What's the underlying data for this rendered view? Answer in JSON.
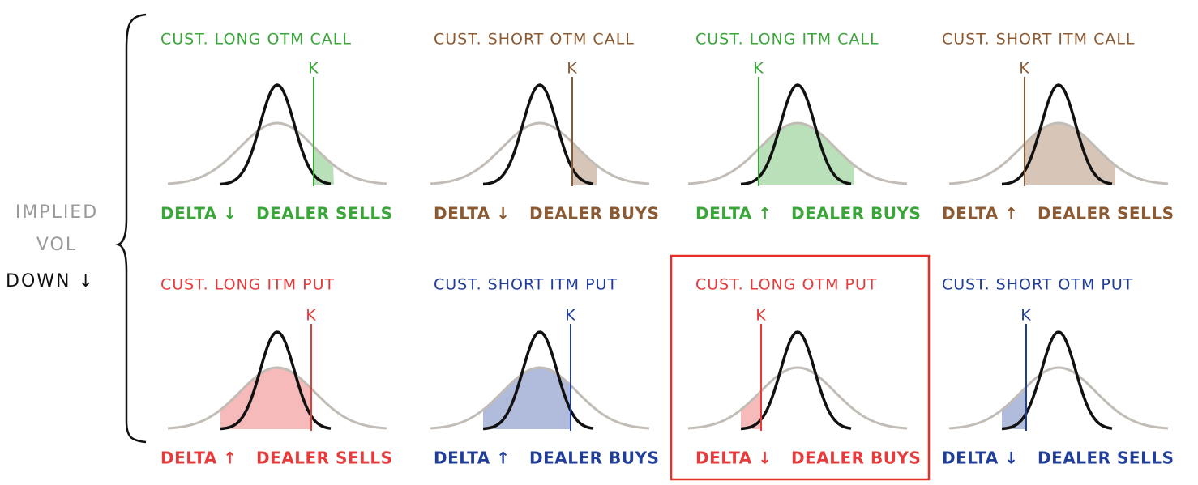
{
  "side_label": {
    "line1": "IMPLIED",
    "line2": "VOL",
    "line3": "DOWN ↓"
  },
  "panels": [
    {
      "title": "CUST. LONG OTM CALL",
      "strike": "K",
      "delta": "DELTA ↓",
      "dealer": "DEALER SELLS",
      "color": "#3aa63a"
    },
    {
      "title": "CUST. SHORT OTM CALL",
      "strike": "K",
      "delta": "DELTA ↓",
      "dealer": "DEALER BUYS",
      "color": "#8b5a33"
    },
    {
      "title": "CUST. LONG ITM CALL",
      "strike": "K",
      "delta": "DELTA ↑",
      "dealer": "DEALER BUYS",
      "color": "#3aa63a"
    },
    {
      "title": "CUST. SHORT ITM CALL",
      "strike": "K",
      "delta": "DELTA ↑",
      "dealer": "DEALER SELLS",
      "color": "#8b5a33"
    },
    {
      "title": "CUST. LONG ITM PUT",
      "strike": "K",
      "delta": "DELTA ↑",
      "dealer": "DEALER SELLS",
      "color": "#e83a3a"
    },
    {
      "title": "CUST. SHORT ITM PUT",
      "strike": "K",
      "delta": "DELTA ↑",
      "dealer": "DEALER BUYS",
      "color": "#1f3d9a"
    },
    {
      "title": "CUST. LONG OTM PUT",
      "strike": "K",
      "delta": "DELTA ↓",
      "dealer": "DEALER BUYS",
      "color": "#e83a3a"
    },
    {
      "title": "CUST. SHORT OTM PUT",
      "strike": "K",
      "delta": "DELTA ↓",
      "dealer": "DEALER SELLS",
      "color": "#1f3d9a"
    }
  ]
}
